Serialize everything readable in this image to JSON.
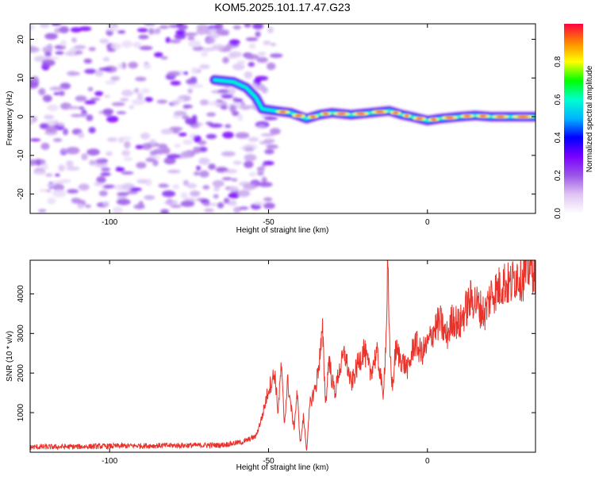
{
  "title": "KOM5.2025.101.17.47.G23",
  "chart_data": [
    {
      "type": "heatmap",
      "xlabel": "Height of straight line (km)",
      "ylabel": "Frequency (Hz)",
      "xlim": [
        -125,
        34
      ],
      "ylim": [
        -25,
        24
      ],
      "xticks": [
        -100,
        -50,
        0
      ],
      "yticks": [
        -20,
        -10,
        0,
        10,
        20
      ],
      "colorbar": {
        "label": "Normalized spectral amplitude",
        "range": [
          0.0,
          1.0
        ],
        "ticks": [
          "0.0",
          "0.2",
          "0.4",
          "0.6",
          "0.8"
        ],
        "colormap": [
          "#ffffff",
          "#e0c4f2",
          "#9a56e8",
          "#7a00ff",
          "#0000ff",
          "#00b4ff",
          "#00ffd0",
          "#00ff00",
          "#ffff00",
          "#ff8800",
          "#ff0040"
        ]
      },
      "noise_region": {
        "x_range": [
          -125,
          -52
        ],
        "freq_range": [
          -25,
          24
        ],
        "amplitude": "low"
      },
      "signal_trace": [
        {
          "x": -67,
          "f": 9.5
        },
        {
          "x": -61,
          "f": 9.0
        },
        {
          "x": -57,
          "f": 7.5
        },
        {
          "x": -54,
          "f": 5.0
        },
        {
          "x": -52,
          "f": 2.0
        },
        {
          "x": -48,
          "f": 1.5
        },
        {
          "x": -43,
          "f": 1.0
        },
        {
          "x": -38,
          "f": -0.5
        },
        {
          "x": -34,
          "f": 0.5
        },
        {
          "x": -30,
          "f": 1.0
        },
        {
          "x": -24,
          "f": 0.5
        },
        {
          "x": -18,
          "f": 1.0
        },
        {
          "x": -12,
          "f": 1.5
        },
        {
          "x": -8,
          "f": 0.5
        },
        {
          "x": -5,
          "f": 0.0
        },
        {
          "x": 0,
          "f": -1.0
        },
        {
          "x": 4,
          "f": -0.5
        },
        {
          "x": 10,
          "f": 0.0
        },
        {
          "x": 15,
          "f": 0.3
        },
        {
          "x": 20,
          "f": 0.0
        },
        {
          "x": 26,
          "f": 0.0
        },
        {
          "x": 34,
          "f": 0.0
        }
      ]
    },
    {
      "type": "line",
      "xlabel": "Height of straight line (km)",
      "ylabel": "SNR (10 * v/v)",
      "xlim": [
        -125,
        34
      ],
      "ylim": [
        0,
        4850
      ],
      "xticks": [
        -100,
        -50,
        0
      ],
      "yticks": [
        1000,
        2000,
        3000,
        4000
      ],
      "color": "#e8322a",
      "series": [
        {
          "x": [
            -125,
            -110,
            -95,
            -80,
            -65,
            -58,
            -54,
            -52,
            -50,
            -48,
            -47,
            -46,
            -45,
            -44,
            -43,
            -42,
            -41,
            -40,
            -39,
            -38,
            -37,
            -35,
            -33,
            -32,
            -31,
            -30,
            -29,
            -28,
            -26,
            -24,
            -22,
            -20,
            -18,
            -16,
            -15,
            -14,
            -13,
            -12.5,
            -12,
            -11,
            -10,
            -8,
            -6,
            -4,
            -2,
            0,
            2,
            4,
            6,
            8,
            10,
            12,
            14,
            16,
            18,
            20,
            22,
            24,
            26,
            28,
            30,
            32,
            34
          ],
          "y": [
            130,
            140,
            160,
            170,
            180,
            260,
            400,
            900,
            1600,
            2000,
            1000,
            2200,
            700,
            1800,
            1200,
            600,
            1500,
            200,
            900,
            50,
            1200,
            1700,
            3000,
            1200,
            2400,
            1800,
            1500,
            2000,
            2500,
            1700,
            2200,
            2600,
            2000,
            2500,
            2100,
            1400,
            2900,
            4750,
            2800,
            1600,
            2600,
            2300,
            2100,
            2800,
            2500,
            2700,
            3100,
            3300,
            2900,
            3400,
            3200,
            3600,
            3900,
            3700,
            3500,
            4000,
            4100,
            4300,
            4200,
            4500,
            4400,
            4700,
            4600
          ]
        }
      ]
    }
  ]
}
